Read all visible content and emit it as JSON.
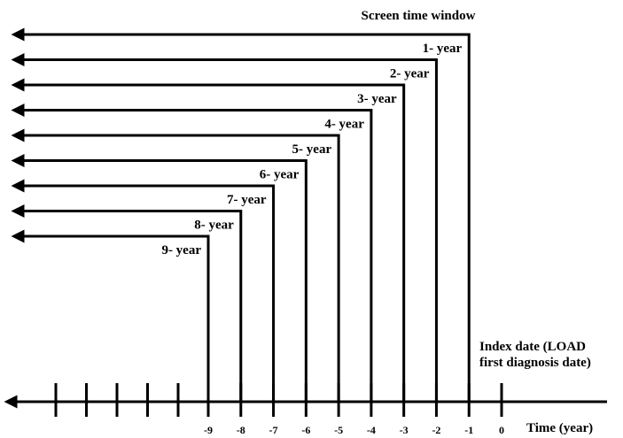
{
  "title": "Screen time window",
  "index_label": {
    "line1": "Index date (LOAD",
    "line2": "first diagnosis date)"
  },
  "axis_label": "Time (year)",
  "windows": [
    {
      "label": "1- year",
      "years": 1
    },
    {
      "label": "2- year",
      "years": 2
    },
    {
      "label": "3- year",
      "years": 3
    },
    {
      "label": "4- year",
      "years": 4
    },
    {
      "label": "5- year",
      "years": 5
    },
    {
      "label": "6- year",
      "years": 6
    },
    {
      "label": "7- year",
      "years": 7
    },
    {
      "label": "8- year",
      "years": 8
    },
    {
      "label": "9- year",
      "years": 9
    }
  ],
  "ticks": [
    "-9",
    "-8",
    "-7",
    "-6",
    "-5",
    "-4",
    "-3",
    "-2",
    "-1",
    "0"
  ],
  "extra_tick_count": 5
}
